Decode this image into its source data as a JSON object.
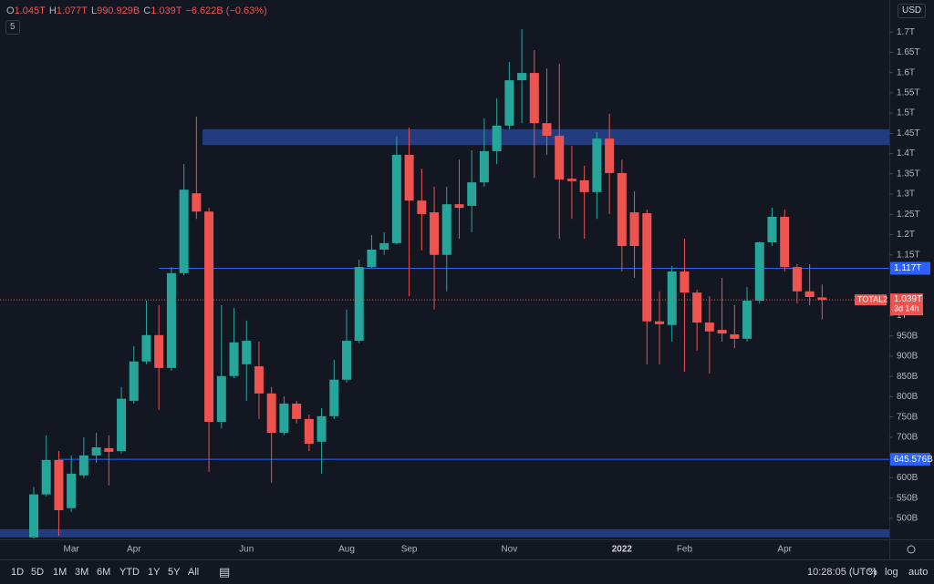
{
  "chart_data": {
    "type": "candlestick",
    "symbol": "TOTAL2",
    "currency": "USD",
    "indicator_count": "5",
    "header": {
      "ohlc": [
        {
          "key": "O",
          "value": "1.045T"
        },
        {
          "key": "H",
          "value": "1.077T"
        },
        {
          "key": "L",
          "value": "990.929B"
        },
        {
          "key": "C",
          "value": "1.039T"
        }
      ],
      "change": "−6.622B (−0.63%)"
    },
    "categories": [
      null,
      null,
      null,
      "Mar",
      null,
      null,
      null,
      null,
      "Apr",
      null,
      null,
      null,
      null,
      null,
      null,
      null,
      null,
      "Jun",
      null,
      null,
      null,
      null,
      null,
      null,
      null,
      "Aug",
      null,
      null,
      null,
      null,
      "Sep",
      null,
      null,
      null,
      null,
      null,
      null,
      null,
      "Nov",
      null,
      null,
      null,
      null,
      null,
      null,
      null,
      null,
      "2022",
      null,
      null,
      null,
      null,
      "Feb",
      null,
      null,
      null,
      null,
      null,
      null,
      null,
      "Apr",
      null,
      null,
      null
    ],
    "open": [
      453,
      559,
      644,
      525,
      606,
      655,
      673,
      666,
      790,
      887,
      952,
      871,
      1105,
      1302,
      1257,
      738,
      851,
      880,
      875,
      808,
      711,
      783,
      745,
      689,
      752,
      842,
      938,
      1120,
      1163,
      1179,
      1397,
      1284,
      1255,
      1150,
      1275,
      1271,
      1329,
      1406,
      1469,
      1581,
      1599,
      1475,
      1444,
      1338,
      1334,
      1305,
      1437,
      1352,
      1255,
      1253,
      986,
      977,
      1109,
      1057,
      983,
      965,
      954,
      943,
      1037,
      1181,
      1244,
      1120,
      1060,
      1045
    ],
    "high": [
      577,
      705,
      666,
      655,
      700,
      711,
      705,
      824,
      925,
      1037,
      1026,
      1120,
      1374,
      1491,
      1266,
      1026,
      1019,
      988,
      936,
      824,
      801,
      790,
      756,
      772,
      891,
      1015,
      1138,
      1199,
      1206,
      1442,
      1464,
      1363,
      1318,
      1318,
      1385,
      1408,
      1487,
      1536,
      1626,
      1707,
      1655,
      1610,
      1621,
      1419,
      1370,
      1453,
      1498,
      1385,
      1307,
      1262,
      1060,
      1123,
      1190,
      1064,
      1048,
      1093,
      1026,
      1071,
      1183,
      1266,
      1262,
      1127,
      1127,
      1077
    ],
    "low": [
      450,
      554,
      457,
      516,
      599,
      637,
      581,
      660,
      783,
      880,
      768,
      864,
      1100,
      1239,
      615,
      722,
      846,
      790,
      745,
      588,
      705,
      734,
      666,
      610,
      745,
      835,
      932,
      1116,
      1150,
      1176,
      1048,
      1161,
      1015,
      1060,
      1190,
      1206,
      1318,
      1374,
      1460,
      1475,
      1340,
      1397,
      1190,
      1239,
      1190,
      1239,
      1251,
      1109,
      1093,
      880,
      880,
      936,
      862,
      914,
      857,
      936,
      920,
      936,
      1030,
      1172,
      1109,
      1030,
      1026,
      990.929
    ],
    "close": [
      559,
      644,
      520,
      610,
      655,
      675,
      664,
      795,
      887,
      952,
      871,
      1105,
      1311,
      1257,
      738,
      851,
      934,
      938,
      808,
      711,
      783,
      745,
      684,
      752,
      842,
      938,
      1120,
      1163,
      1179,
      1397,
      1284,
      1251,
      1150,
      1275,
      1266,
      1329,
      1406,
      1469,
      1581,
      1599,
      1475,
      1444,
      1336,
      1332,
      1305,
      1437,
      1352,
      1172,
      1172,
      986,
      979,
      1109,
      1057,
      983,
      961,
      956,
      943,
      1037,
      1181,
      1244,
      1120,
      1060,
      1046,
      1039
    ],
    "up_color": "#26a69a",
    "down_color": "#ef5350",
    "ylim": [
      448,
      1779
    ],
    "yticks": [
      {
        "value": 500,
        "label": "500B"
      },
      {
        "value": 550,
        "label": "550B"
      },
      {
        "value": 600,
        "label": "600B"
      },
      {
        "value": 700,
        "label": "700B"
      },
      {
        "value": 750,
        "label": "750B"
      },
      {
        "value": 800,
        "label": "800B"
      },
      {
        "value": 850,
        "label": "850B"
      },
      {
        "value": 900,
        "label": "900B"
      },
      {
        "value": 950,
        "label": "950B"
      },
      {
        "value": 1000,
        "label": "1T"
      },
      {
        "value": 1150,
        "label": "1.15T"
      },
      {
        "value": 1200,
        "label": "1.2T"
      },
      {
        "value": 1250,
        "label": "1.25T"
      },
      {
        "value": 1300,
        "label": "1.3T"
      },
      {
        "value": 1350,
        "label": "1.35T"
      },
      {
        "value": 1400,
        "label": "1.4T"
      },
      {
        "value": 1450,
        "label": "1.45T"
      },
      {
        "value": 1500,
        "label": "1.5T"
      },
      {
        "value": 1550,
        "label": "1.55T"
      },
      {
        "value": 1600,
        "label": "1.6T"
      },
      {
        "value": 1650,
        "label": "1.65T"
      },
      {
        "value": 1700,
        "label": "1.7T"
      }
    ],
    "grid": false,
    "levels": [
      {
        "value": 1117,
        "label": "1.117T"
      },
      {
        "value": 645.576,
        "label": "645.576B"
      }
    ],
    "level_color": "#2962ff",
    "zones": [
      {
        "from": 1421,
        "to": 1460
      },
      {
        "from": 453,
        "to": 473
      }
    ],
    "last_price_label": "1.039T",
    "countdown": "3d 14h"
  },
  "toolbar": {
    "ranges": [
      "1D",
      "5D",
      "1M",
      "3M",
      "6M",
      "YTD",
      "1Y",
      "5Y",
      "All"
    ],
    "clock": "10:28:05 (UTC)",
    "scale_buttons": [
      "%",
      "log",
      "auto"
    ]
  }
}
